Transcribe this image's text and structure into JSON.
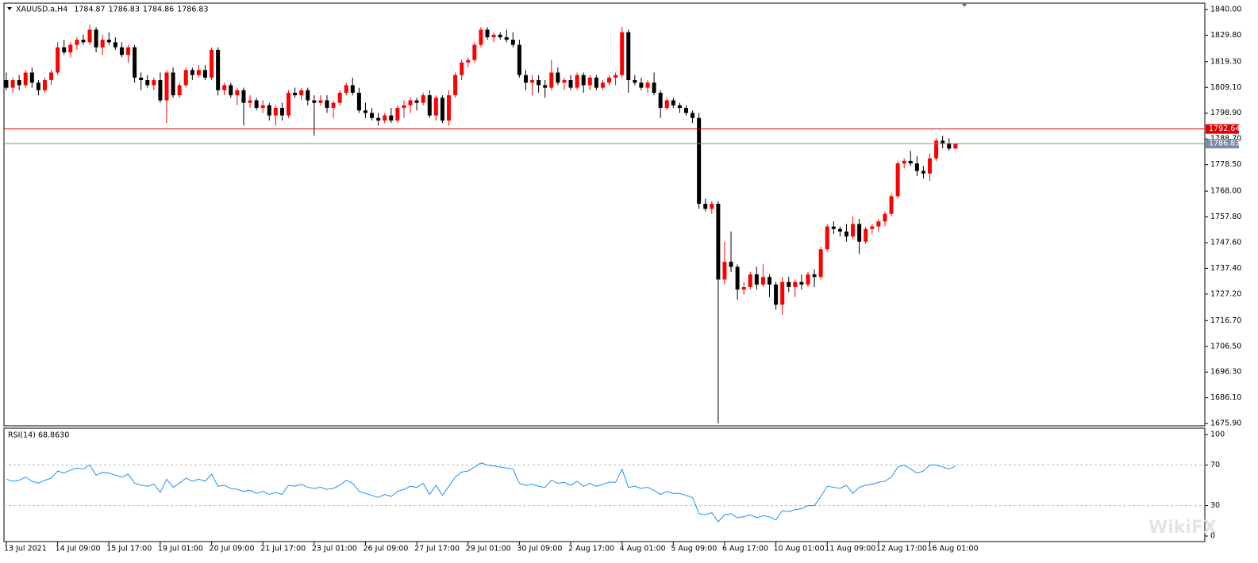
{
  "chart_data": [
    {
      "type": "candlestick",
      "title": "XAUUSD.a,H4",
      "header_values": [
        1784.87,
        1786.83,
        1784.86,
        1786.83
      ],
      "up_color": "#ff0000",
      "down_color": "#000000",
      "hlines": [
        1792.64,
        1786.83
      ],
      "hline_colors": [
        "#e00000",
        "#7a8ca4"
      ],
      "ylim": [
        1675,
        1842.5
      ],
      "yticks": [
        {
          "value": 1840,
          "label": "1840.00"
        },
        {
          "value": 1829.8,
          "label": "1829.80"
        },
        {
          "value": 1819.3,
          "label": "1819.30"
        },
        {
          "value": 1809.1,
          "label": "1809.10"
        },
        {
          "value": 1798.9,
          "label": "1798.90"
        },
        {
          "value": 1788.7,
          "label": "1788.70"
        },
        {
          "value": 1778.5,
          "label": "1778.50"
        },
        {
          "value": 1768,
          "label": "1768.00"
        },
        {
          "value": 1757.8,
          "label": "1757.80"
        },
        {
          "value": 1747.6,
          "label": "1747.60"
        },
        {
          "value": 1737.4,
          "label": "1737.40"
        },
        {
          "value": 1727.2,
          "label": "1727.20"
        },
        {
          "value": 1716.7,
          "label": "1716.70"
        },
        {
          "value": 1706.5,
          "label": "1706.50"
        },
        {
          "value": 1696.3,
          "label": "1696.30"
        },
        {
          "value": 1686.1,
          "label": "1686.10"
        },
        {
          "value": 1675.9,
          "label": "1675.90"
        }
      ],
      "categories": [
        "13 Jul 2021",
        null,
        null,
        null,
        null,
        null,
        null,
        null,
        "14 Jul 09:00",
        null,
        null,
        null,
        null,
        null,
        null,
        null,
        "15 Jul 17:00",
        null,
        null,
        null,
        null,
        null,
        null,
        null,
        "19 Jul 01:00",
        null,
        null,
        null,
        null,
        null,
        null,
        null,
        "20 Jul 09:00",
        null,
        null,
        null,
        null,
        null,
        null,
        null,
        "21 Jul 17:00",
        null,
        null,
        null,
        null,
        null,
        null,
        null,
        "23 Jul 01:00",
        null,
        null,
        null,
        null,
        null,
        null,
        null,
        "26 Jul 09:00",
        null,
        null,
        null,
        null,
        null,
        null,
        null,
        "27 Jul 17:00",
        null,
        null,
        null,
        null,
        null,
        null,
        null,
        "29 Jul 01:00",
        null,
        null,
        null,
        null,
        null,
        null,
        null,
        "30 Jul 09:00",
        null,
        null,
        null,
        null,
        null,
        null,
        null,
        "2 Aug 17:00",
        null,
        null,
        null,
        null,
        null,
        null,
        null,
        "4 Aug 01:00",
        null,
        null,
        null,
        null,
        null,
        null,
        null,
        "5 Aug 09:00",
        null,
        null,
        null,
        null,
        null,
        null,
        null,
        "6 Aug 17:00",
        null,
        null,
        null,
        null,
        null,
        null,
        null,
        "10 Aug 01:00",
        null,
        null,
        null,
        null,
        null,
        null,
        null,
        "11 Aug 09:00",
        null,
        null,
        null,
        null,
        null,
        null,
        null,
        "12 Aug 17:00",
        null,
        null,
        null,
        null,
        null,
        null,
        null,
        "16 Aug 01:00",
        null,
        null,
        null,
        null
      ],
      "candles": [
        [
          1812,
          1815,
          1808,
          1809
        ],
        [
          1809,
          1813,
          1807,
          1812
        ],
        [
          1812,
          1814,
          1808,
          1810
        ],
        [
          1810,
          1816,
          1809,
          1815
        ],
        [
          1815,
          1817,
          1809,
          1811
        ],
        [
          1811,
          1812,
          1806,
          1808
        ],
        [
          1808,
          1813,
          1807,
          1812
        ],
        [
          1812,
          1816,
          1810,
          1815
        ],
        [
          1815,
          1827,
          1814,
          1825
        ],
        [
          1825,
          1828,
          1822,
          1823
        ],
        [
          1823,
          1827,
          1821,
          1826
        ],
        [
          1826,
          1829,
          1824,
          1828
        ],
        [
          1828,
          1830,
          1826,
          1827
        ],
        [
          1827,
          1834,
          1826,
          1832
        ],
        [
          1832,
          1833,
          1823,
          1825
        ],
        [
          1825,
          1830,
          1822,
          1828
        ],
        [
          1828,
          1831,
          1826,
          1827
        ],
        [
          1827,
          1829,
          1824,
          1825
        ],
        [
          1825,
          1827,
          1821,
          1822
        ],
        [
          1822,
          1826,
          1819,
          1825
        ],
        [
          1825,
          1826,
          1811,
          1813
        ],
        [
          1813,
          1815,
          1808,
          1812
        ],
        [
          1812,
          1814,
          1809,
          1810
        ],
        [
          1810,
          1813,
          1808,
          1812
        ],
        [
          1812,
          1815,
          1803,
          1804
        ],
        [
          1804,
          1816,
          1795,
          1815
        ],
        [
          1815,
          1817,
          1805,
          1806
        ],
        [
          1806,
          1811,
          1805,
          1810
        ],
        [
          1810,
          1817,
          1809,
          1816
        ],
        [
          1816,
          1817,
          1812,
          1814
        ],
        [
          1814,
          1818,
          1813,
          1816
        ],
        [
          1816,
          1818,
          1812,
          1813
        ],
        [
          1813,
          1825,
          1812,
          1824
        ],
        [
          1824,
          1825,
          1806,
          1808
        ],
        [
          1808,
          1811,
          1806,
          1810
        ],
        [
          1810,
          1811,
          1805,
          1806
        ],
        [
          1806,
          1809,
          1802,
          1808
        ],
        [
          1808,
          1809,
          1794,
          1803
        ],
        [
          1803,
          1806,
          1801,
          1804
        ],
        [
          1804,
          1805,
          1800,
          1801
        ],
        [
          1801,
          1804,
          1799,
          1802
        ],
        [
          1802,
          1803,
          1796,
          1798
        ],
        [
          1798,
          1802,
          1794,
          1801
        ],
        [
          1801,
          1803,
          1796,
          1798
        ],
        [
          1798,
          1808,
          1797,
          1807
        ],
        [
          1807,
          1809,
          1805,
          1806
        ],
        [
          1806,
          1809,
          1804,
          1808
        ],
        [
          1808,
          1809,
          1802,
          1804
        ],
        [
          1804,
          1806,
          1790,
          1803
        ],
        [
          1803,
          1806,
          1802,
          1804
        ],
        [
          1804,
          1806,
          1799,
          1801
        ],
        [
          1801,
          1804,
          1797,
          1803
        ],
        [
          1803,
          1808,
          1802,
          1807
        ],
        [
          1807,
          1811,
          1806,
          1810
        ],
        [
          1810,
          1813,
          1806,
          1807
        ],
        [
          1807,
          1809,
          1799,
          1800
        ],
        [
          1800,
          1803,
          1797,
          1799
        ],
        [
          1799,
          1801,
          1796,
          1797
        ],
        [
          1797,
          1799,
          1794,
          1796
        ],
        [
          1796,
          1799,
          1795,
          1798
        ],
        [
          1798,
          1801,
          1795,
          1796
        ],
        [
          1796,
          1802,
          1795,
          1801
        ],
        [
          1801,
          1804,
          1797,
          1802
        ],
        [
          1802,
          1805,
          1799,
          1804
        ],
        [
          1804,
          1805,
          1800,
          1803
        ],
        [
          1803,
          1807,
          1802,
          1806
        ],
        [
          1806,
          1808,
          1797,
          1798
        ],
        [
          1798,
          1806,
          1796,
          1805
        ],
        [
          1805,
          1806,
          1795,
          1796
        ],
        [
          1796,
          1808,
          1794,
          1806
        ],
        [
          1806,
          1815,
          1805,
          1814
        ],
        [
          1814,
          1820,
          1812,
          1819
        ],
        [
          1819,
          1821,
          1817,
          1820
        ],
        [
          1820,
          1827,
          1819,
          1826
        ],
        [
          1826,
          1833,
          1825,
          1832
        ],
        [
          1832,
          1833,
          1828,
          1829
        ],
        [
          1829,
          1831,
          1827,
          1830
        ],
        [
          1830,
          1831,
          1828,
          1829
        ],
        [
          1829,
          1832,
          1827,
          1828
        ],
        [
          1828,
          1831,
          1825,
          1826
        ],
        [
          1826,
          1828,
          1813,
          1814
        ],
        [
          1814,
          1816,
          1808,
          1811
        ],
        [
          1811,
          1814,
          1806,
          1812
        ],
        [
          1812,
          1814,
          1807,
          1810
        ],
        [
          1810,
          1812,
          1805,
          1809
        ],
        [
          1809,
          1820,
          1808,
          1815
        ],
        [
          1815,
          1817,
          1810,
          1811
        ],
        [
          1811,
          1813,
          1808,
          1812
        ],
        [
          1812,
          1814,
          1808,
          1809
        ],
        [
          1809,
          1815,
          1808,
          1814
        ],
        [
          1814,
          1815,
          1807,
          1810
        ],
        [
          1810,
          1814,
          1808,
          1813
        ],
        [
          1813,
          1814,
          1808,
          1809
        ],
        [
          1809,
          1812,
          1808,
          1811
        ],
        [
          1811,
          1814,
          1810,
          1813
        ],
        [
          1813,
          1815,
          1810,
          1814
        ],
        [
          1814,
          1833,
          1813,
          1831
        ],
        [
          1831,
          1832,
          1807,
          1812
        ],
        [
          1812,
          1814,
          1810,
          1811
        ],
        [
          1811,
          1813,
          1808,
          1809
        ],
        [
          1809,
          1812,
          1807,
          1811
        ],
        [
          1811,
          1815,
          1806,
          1807
        ],
        [
          1807,
          1808,
          1797,
          1801
        ],
        [
          1801,
          1805,
          1800,
          1804
        ],
        [
          1804,
          1805,
          1801,
          1802
        ],
        [
          1802,
          1803,
          1799,
          1801
        ],
        [
          1801,
          1802,
          1798,
          1799
        ],
        [
          1799,
          1800,
          1795,
          1797
        ],
        [
          1797,
          1799,
          1761,
          1763
        ],
        [
          1763,
          1765,
          1760,
          1761
        ],
        [
          1761,
          1764,
          1759,
          1763
        ],
        [
          1763,
          1764,
          1676,
          1733
        ],
        [
          1733,
          1748,
          1731,
          1740
        ],
        [
          1740,
          1752,
          1736,
          1738
        ],
        [
          1738,
          1739,
          1725,
          1729
        ],
        [
          1729,
          1732,
          1727,
          1730
        ],
        [
          1730,
          1736,
          1729,
          1735
        ],
        [
          1735,
          1738,
          1729,
          1731
        ],
        [
          1731,
          1739,
          1730,
          1734
        ],
        [
          1734,
          1735,
          1726,
          1731
        ],
        [
          1731,
          1732,
          1721,
          1723
        ],
        [
          1723,
          1734,
          1719,
          1732
        ],
        [
          1732,
          1734,
          1728,
          1730
        ],
        [
          1730,
          1733,
          1726,
          1732
        ],
        [
          1732,
          1735,
          1729,
          1731
        ],
        [
          1731,
          1736,
          1730,
          1735
        ],
        [
          1735,
          1737,
          1730,
          1734
        ],
        [
          1734,
          1746,
          1733,
          1745
        ],
        [
          1745,
          1755,
          1744,
          1754
        ],
        [
          1754,
          1756,
          1751,
          1753
        ],
        [
          1753,
          1754,
          1750,
          1752
        ],
        [
          1752,
          1755,
          1748,
          1750
        ],
        [
          1750,
          1758,
          1749,
          1755
        ],
        [
          1755,
          1757,
          1743,
          1748
        ],
        [
          1748,
          1754,
          1747,
          1753
        ],
        [
          1753,
          1755,
          1751,
          1754
        ],
        [
          1754,
          1757,
          1752,
          1756
        ],
        [
          1756,
          1760,
          1754,
          1759
        ],
        [
          1759,
          1767,
          1758,
          1766
        ],
        [
          1766,
          1780,
          1765,
          1779
        ],
        [
          1779,
          1781,
          1777,
          1780
        ],
        [
          1780,
          1784,
          1778,
          1779
        ],
        [
          1779,
          1782,
          1774,
          1776
        ],
        [
          1776,
          1778,
          1773,
          1775
        ],
        [
          1775,
          1783,
          1772,
          1781
        ],
        [
          1781,
          1789,
          1780,
          1788
        ],
        [
          1788,
          1790,
          1785,
          1787
        ],
        [
          1787,
          1789,
          1784,
          1784.87
        ],
        [
          1784.87,
          1786.83,
          1784.86,
          1786.83
        ]
      ]
    },
    {
      "type": "line",
      "title": "RSI(14) 68.8630",
      "color": "#1e90ff",
      "ylim": [
        -5.47,
        106.25
      ],
      "yticks": [
        100,
        70,
        30,
        0
      ],
      "levels": [
        70,
        30
      ],
      "values": [
        56,
        54,
        55,
        58,
        54,
        52,
        55,
        57,
        64,
        62,
        65,
        67,
        66,
        70,
        60,
        63,
        62,
        60,
        58,
        61,
        52,
        50,
        49,
        51,
        43,
        56,
        48,
        52,
        57,
        54,
        56,
        54,
        61,
        49,
        50,
        47,
        46,
        44,
        45,
        42,
        44,
        41,
        43,
        41,
        50,
        49,
        51,
        48,
        47,
        48,
        46,
        47,
        50,
        55,
        52,
        44,
        42,
        40,
        38,
        41,
        39,
        44,
        46,
        49,
        48,
        52,
        41,
        50,
        40,
        49,
        58,
        63,
        64,
        68,
        72,
        70,
        69,
        68,
        67,
        66,
        52,
        50,
        51,
        49,
        48,
        55,
        52,
        53,
        50,
        54,
        49,
        52,
        49,
        51,
        53,
        53,
        66,
        48,
        49,
        47,
        48,
        45,
        41,
        44,
        42,
        42,
        40,
        38,
        22,
        21,
        23,
        14,
        21,
        22,
        18,
        19,
        21,
        18,
        20,
        19,
        16,
        25,
        24,
        26,
        27,
        30,
        30,
        39,
        49,
        48,
        47,
        50,
        42,
        48,
        50,
        51,
        53,
        54,
        58,
        68,
        70,
        66,
        62,
        64,
        70,
        70,
        68,
        66,
        68.863
      ]
    }
  ],
  "watermark": "WikiFX"
}
